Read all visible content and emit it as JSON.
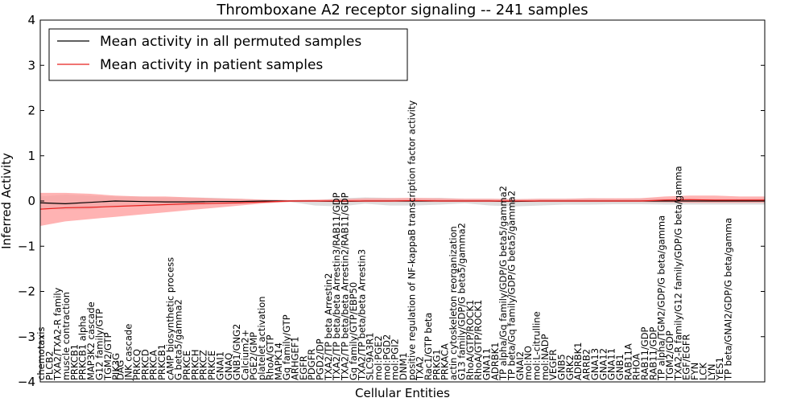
{
  "chart_data": {
    "type": "line",
    "title": "Thromboxane A2 receptor signaling -- 241 samples",
    "xlabel": "Cellular Entities",
    "ylabel": "Inferred Activity",
    "ylim": [
      -4,
      4
    ],
    "yticks": [
      4,
      3,
      2,
      1,
      0,
      -1,
      -2,
      -3,
      -4
    ],
    "ytick_labels": [
      "4",
      "3",
      "2",
      "1",
      "0",
      "−1",
      "−2",
      "−3",
      "−4"
    ],
    "grid": false,
    "legend_position": "top-left",
    "legend": [
      {
        "label": "Mean activity in all permuted samples",
        "color": "#000000"
      },
      {
        "label": "Mean activity in patient samples",
        "color": "#e8211f"
      }
    ],
    "series": [
      {
        "name": "Mean activity in all permuted samples",
        "color": "#000000",
        "band_color": "#d8d8d8",
        "x": [
          0,
          6,
          12,
          18,
          24,
          30,
          36,
          42,
          48,
          54,
          60,
          66,
          72,
          78,
          84,
          90,
          96,
          102,
          108,
          114,
          120,
          126,
          132,
          138,
          144,
          150,
          156,
          162,
          168,
          174
        ],
        "values": [
          -0.04,
          -0.06,
          -0.03,
          0.0,
          -0.01,
          -0.02,
          -0.02,
          -0.01,
          -0.01,
          0.0,
          0.0,
          0.0,
          -0.01,
          0.0,
          0.0,
          0.0,
          0.0,
          0.0,
          0.0,
          -0.01,
          0.0,
          0.0,
          0.0,
          0.0,
          0.0,
          0.0,
          0.0,
          0.0,
          0.0,
          0.0
        ],
        "band_lower": [
          -0.15,
          -0.2,
          -0.18,
          -0.12,
          -0.12,
          -0.1,
          -0.1,
          -0.08,
          -0.06,
          -0.03,
          -0.02,
          -0.1,
          -0.12,
          -0.06,
          -0.1,
          -0.1,
          -0.08,
          -0.05,
          -0.1,
          -0.12,
          -0.1,
          -0.08,
          -0.08,
          -0.07,
          -0.07,
          -0.08,
          -0.08,
          -0.08,
          -0.08,
          -0.08
        ],
        "band_upper": [
          0.1,
          0.14,
          0.12,
          0.1,
          0.1,
          0.08,
          0.08,
          0.07,
          0.05,
          0.03,
          0.02,
          0.02,
          0.06,
          0.08,
          0.07,
          0.06,
          0.07,
          0.05,
          0.05,
          0.04,
          0.05,
          0.05,
          0.06,
          0.05,
          0.06,
          0.05,
          0.05,
          0.05,
          0.05,
          0.06
        ]
      },
      {
        "name": "Mean activity in patient samples",
        "color": "#e8211f",
        "band_color": "#ff9a9a",
        "x": [
          0,
          6,
          12,
          18,
          24,
          30,
          36,
          42,
          48,
          54,
          60,
          66,
          72,
          78,
          84,
          90,
          96,
          102,
          108,
          114,
          120,
          126,
          132,
          138,
          144,
          150,
          156,
          162,
          168,
          174
        ],
        "values": [
          -0.18,
          -0.15,
          -0.14,
          -0.12,
          -0.1,
          -0.08,
          -0.06,
          -0.05,
          -0.04,
          -0.02,
          0.0,
          0.0,
          0.0,
          0.0,
          0.0,
          0.01,
          0.0,
          0.0,
          0.0,
          0.0,
          0.0,
          0.0,
          0.0,
          0.0,
          0.0,
          0.02,
          0.03,
          0.02,
          0.02,
          0.02
        ],
        "band_lower": [
          -0.55,
          -0.45,
          -0.4,
          -0.35,
          -0.3,
          -0.25,
          -0.2,
          -0.15,
          -0.1,
          -0.05,
          -0.02,
          -0.02,
          -0.02,
          -0.02,
          -0.02,
          -0.02,
          -0.02,
          -0.02,
          -0.02,
          -0.02,
          -0.02,
          -0.02,
          -0.02,
          -0.02,
          -0.02,
          -0.03,
          -0.04,
          -0.04,
          -0.04,
          -0.04
        ],
        "band_upper": [
          0.18,
          0.18,
          0.16,
          0.12,
          0.1,
          0.1,
          0.08,
          0.06,
          0.05,
          0.03,
          0.02,
          0.03,
          0.04,
          0.06,
          0.06,
          0.07,
          0.06,
          0.05,
          0.05,
          0.04,
          0.05,
          0.05,
          0.06,
          0.06,
          0.06,
          0.1,
          0.12,
          0.12,
          0.1,
          0.1
        ]
      }
    ],
    "entity_labels": [
      {
        "text": "chemotaxis",
        "x": 0
      },
      {
        "text": "PLCB2",
        "x": 2
      },
      {
        "text": "TXA2/TXA2-R family",
        "x": 4
      },
      {
        "text": "muscle contraction",
        "x": 6
      },
      {
        "text": "PRKCB1",
        "x": 8
      },
      {
        "text": "PRKCB1 alpha",
        "x": 10
      },
      {
        "text": "MAP3K2 cascade",
        "x": 12
      },
      {
        "text": "G12 family/GTP",
        "x": 14
      },
      {
        "text": "TGM2/GTP",
        "x": 16
      },
      {
        "text": "PIK3G",
        "x": 18
      },
      {
        "text": "DAG",
        "x": 19
      },
      {
        "text": "JNK cascade",
        "x": 21
      },
      {
        "text": "PRKCQ",
        "x": 23
      },
      {
        "text": "PRKCD",
        "x": 25
      },
      {
        "text": "PRKCA",
        "x": 27
      },
      {
        "text": "PRKCB1",
        "x": 29
      },
      {
        "text": "cAMP biosynthetic process",
        "x": 31
      },
      {
        "text": "G beta5/gamma2",
        "x": 33
      },
      {
        "text": "PRKCE",
        "x": 35
      },
      {
        "text": "PRKCH",
        "x": 37
      },
      {
        "text": "PRKCZ",
        "x": 39
      },
      {
        "text": "PRKCE",
        "x": 41
      },
      {
        "text": "GNAI1",
        "x": 43
      },
      {
        "text": "GNAQ",
        "x": 45
      },
      {
        "text": "GNB1/GNG2",
        "x": 47
      },
      {
        "text": "Calcium2+",
        "x": 49
      },
      {
        "text": "PGE2/GMP",
        "x": 51
      },
      {
        "text": "platelet activation",
        "x": 53
      },
      {
        "text": "RhoA/GTP",
        "x": 55
      },
      {
        "text": "MAPK14",
        "x": 57
      },
      {
        "text": "Gq family/GTP",
        "x": 59
      },
      {
        "text": "ARHGEF1",
        "x": 61
      },
      {
        "text": "EGFR",
        "x": 63
      },
      {
        "text": "PDGFR",
        "x": 65
      },
      {
        "text": "PGD2/DP",
        "x": 67
      },
      {
        "text": "TXA2/TP beta Arrestin2",
        "x": 69
      },
      {
        "text": "TXA2/TP beta/beta Arrestin3/RAB11/GDP",
        "x": 71
      },
      {
        "text": "TXA2/TP beta/beta Arrestin2/RAB11/GDP",
        "x": 73
      },
      {
        "text": "Gq family/GTP/EBP50",
        "x": 75
      },
      {
        "text": "TXA2/TP beta/beta Arrestin3",
        "x": 77
      },
      {
        "text": "SLC9A3R1",
        "x": 79
      },
      {
        "text": "mol:PGE2",
        "x": 81
      },
      {
        "text": "mol:PGD2",
        "x": 83
      },
      {
        "text": "mol:PGI2",
        "x": 85
      },
      {
        "text": "DNM1",
        "x": 87
      },
      {
        "text": "positive regulation of NF-kappaB transcription factor activity",
        "x": 89
      },
      {
        "text": "TXA2",
        "x": 91
      },
      {
        "text": "Rac1/GTP beta",
        "x": 93
      },
      {
        "text": "PRKG1",
        "x": 95
      },
      {
        "text": "PRKACA",
        "x": 97
      },
      {
        "text": "actin cytoskeleton reorganization",
        "x": 99
      },
      {
        "text": "G13 family/GDP/G beta5/gamma2",
        "x": 101
      },
      {
        "text": "RhoA/GTP/ROCK1",
        "x": 103
      },
      {
        "text": "RhoA/GTP/ROCK1",
        "x": 105
      },
      {
        "text": "GNA11",
        "x": 107
      },
      {
        "text": "ADRBK1",
        "x": 109
      },
      {
        "text": "TP alpha/Gq family/GDP/G beta5/gamma2",
        "x": 111
      },
      {
        "text": "TP beta/Gq family/GDP/G beta5/gamma2",
        "x": 113
      },
      {
        "text": "GNAI2",
        "x": 115
      },
      {
        "text": "mol:NO",
        "x": 117
      },
      {
        "text": "mol:L-citrulline",
        "x": 119
      },
      {
        "text": "mol:NADP",
        "x": 121
      },
      {
        "text": "VEGFR",
        "x": 123
      },
      {
        "text": "GNB5",
        "x": 125
      },
      {
        "text": "GRK2",
        "x": 127
      },
      {
        "text": "ADRBK1",
        "x": 129
      },
      {
        "text": "ARRB2",
        "x": 131
      },
      {
        "text": "GNA13",
        "x": 133
      },
      {
        "text": "GNA12",
        "x": 135
      },
      {
        "text": "GNA11",
        "x": 137
      },
      {
        "text": "GNB1",
        "x": 139
      },
      {
        "text": "RAB11A",
        "x": 141
      },
      {
        "text": "RHOA",
        "x": 143
      },
      {
        "text": "RAB11/GDP",
        "x": 145
      },
      {
        "text": "RAB11/GDP",
        "x": 147
      },
      {
        "text": "TP alpha/TGM2/GDP/G beta/gamma",
        "x": 149
      },
      {
        "text": "TGM2/GDP",
        "x": 151
      },
      {
        "text": "TXA2-R family/G12 family/GDP/G beta/gamma",
        "x": 153
      },
      {
        "text": "EGF/EGFR",
        "x": 155
      },
      {
        "text": "FYN",
        "x": 157
      },
      {
        "text": "LCK",
        "x": 159
      },
      {
        "text": "LYN",
        "x": 161
      },
      {
        "text": "YES1",
        "x": 163
      },
      {
        "text": "TP beta/GNAI2/GDP/G beta/gamma",
        "x": 165
      }
    ],
    "xlim": [
      0,
      174
    ]
  }
}
